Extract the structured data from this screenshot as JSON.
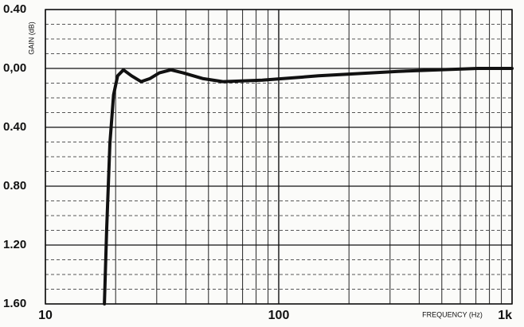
{
  "chart_data": {
    "type": "line",
    "y_label": "GAIN (dB)",
    "x_label": "FREQUENCY (Hz)",
    "x": [
      17.9,
      18.3,
      18.9,
      19.6,
      20.4,
      21.6,
      23.4,
      25.7,
      28,
      30.8,
      34.5,
      38.9,
      47.5,
      57.7,
      85,
      148,
      325,
      713,
      1000
    ],
    "values": [
      -1.6,
      -1.1,
      -0.51,
      -0.18,
      -0.05,
      -0.01,
      -0.05,
      -0.09,
      -0.07,
      -0.03,
      -0.01,
      -0.03,
      -0.07,
      -0.09,
      -0.08,
      -0.05,
      -0.02,
      0,
      0
    ],
    "color": "#111111",
    "xscale": "log",
    "xlim": [
      10,
      1000
    ],
    "xticks": [
      10,
      100,
      {
        "value": 1000,
        "label": "1k"
      }
    ],
    "minor_xticks": [
      20,
      30,
      40,
      50,
      60,
      70,
      80,
      90,
      200,
      300,
      400,
      500,
      600,
      700,
      800,
      900
    ],
    "ylim": [
      -1.6,
      0.4
    ],
    "yticks": [
      {
        "value": 0.4,
        "label": "0.40"
      },
      {
        "value": 0,
        "label": "0,00"
      },
      {
        "value": -0.4,
        "label": "0.40"
      },
      {
        "value": -0.8,
        "label": "0.80"
      },
      {
        "value": -1.2,
        "label": "1.20"
      },
      {
        "value": -1.6,
        "label": "1.60"
      }
    ],
    "minor_yticks": [
      0.3,
      0.2,
      0.1,
      -0.1,
      -0.2,
      -0.3,
      -0.5,
      -0.6,
      -0.7,
      -0.9,
      -1.0,
      -1.1,
      -1.3,
      -1.4,
      -1.5
    ],
    "grid": true
  }
}
